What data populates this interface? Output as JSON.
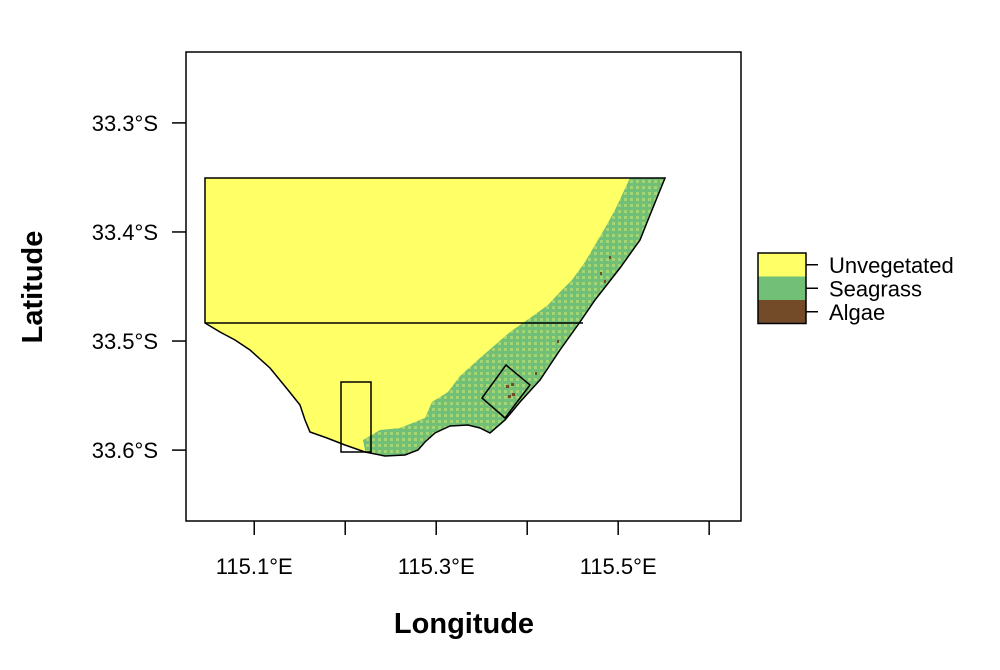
{
  "map": {
    "x_axis_title": "Longitude",
    "y_axis_title": "Latitude",
    "x_ticks": [
      {
        "value": 115.1,
        "label": "115.1°E"
      },
      {
        "value": 115.2,
        "label": ""
      },
      {
        "value": 115.3,
        "label": "115.3°E"
      },
      {
        "value": 115.4,
        "label": ""
      },
      {
        "value": 115.5,
        "label": "115.5°E"
      },
      {
        "value": 115.6,
        "label": ""
      }
    ],
    "y_ticks": [
      {
        "value": -33.3,
        "label": "33.3°S"
      },
      {
        "value": -33.4,
        "label": "33.4°S"
      },
      {
        "value": -33.5,
        "label": "33.5°S"
      },
      {
        "value": -33.6,
        "label": "33.6°S"
      }
    ],
    "x_range": [
      115.025,
      115.635
    ],
    "y_range": [
      -33.665,
      -33.235
    ],
    "legend": {
      "placement": "right",
      "items": [
        {
          "label": "Unvegetated",
          "color": "#FFFF66"
        },
        {
          "label": "Seagrass",
          "color": "#72BF78"
        },
        {
          "label": "Algae",
          "color": "#734B28"
        }
      ]
    }
  }
}
